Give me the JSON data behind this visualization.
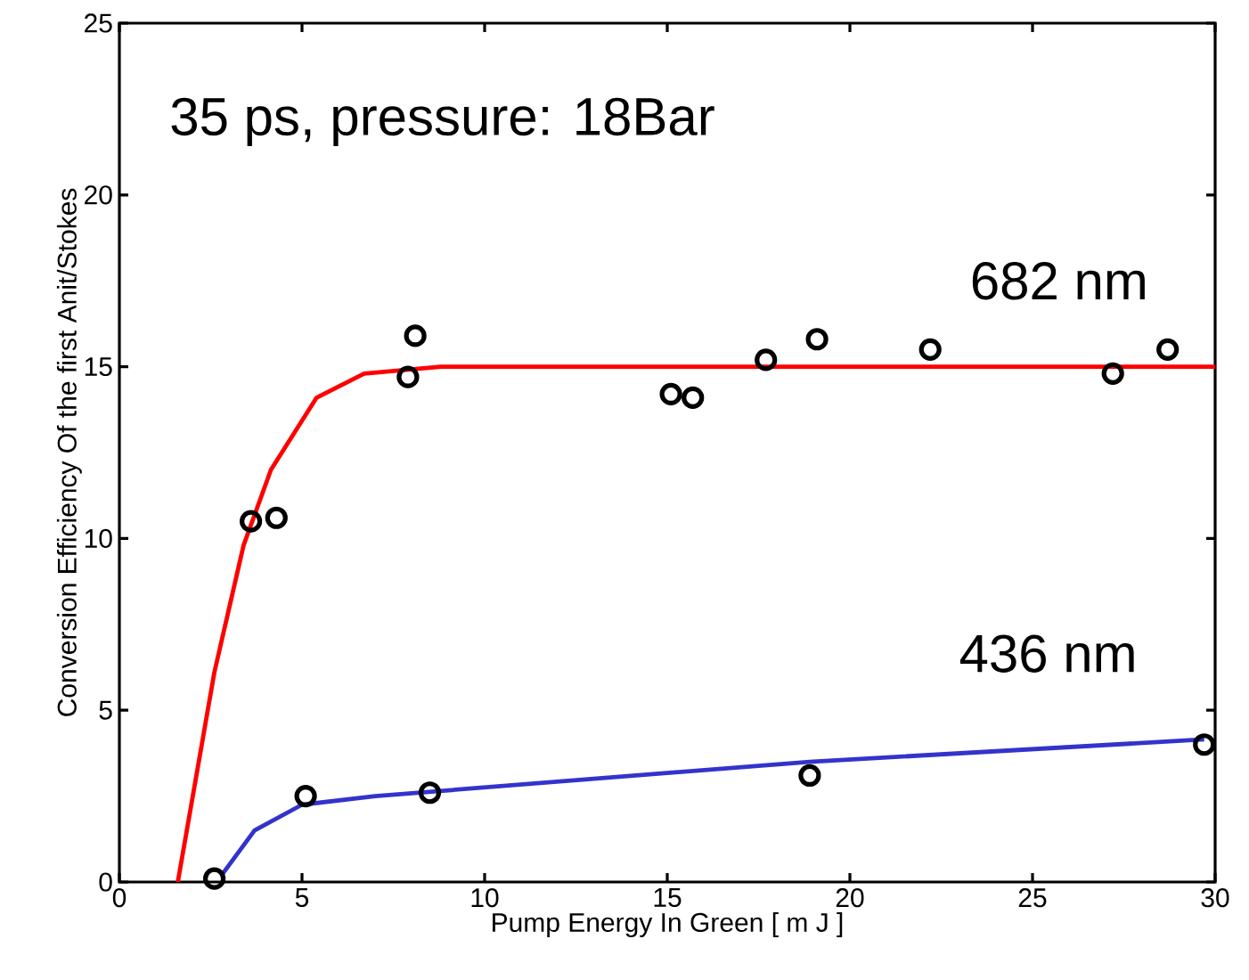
{
  "chart_data": {
    "type": "line",
    "xlabel": "Pump Energy In Green [ m J ]",
    "ylabel": "Conversion Efficiency Of the first Anit/Stokes",
    "annotations": [
      "35 ps, pressure: 18Bar"
    ],
    "xlim": [
      0,
      30
    ],
    "ylim": [
      0,
      25
    ],
    "xticks": [
      0,
      5,
      10,
      15,
      20,
      25,
      30
    ],
    "yticks": [
      0,
      5,
      10,
      15,
      20,
      25
    ],
    "grid": false,
    "legend": false,
    "series": [
      {
        "type": "scatter",
        "marker": "circle",
        "color": "#000000",
        "x": [
          2.6,
          3.6,
          4.3,
          7.9,
          8.1,
          15.1,
          15.7,
          17.7,
          19.1,
          22.2,
          27.2,
          28.7
        ],
        "values": [
          0.1,
          10.5,
          10.6,
          14.7,
          15.9,
          14.2,
          14.1,
          15.2,
          15.8,
          15.5,
          14.8,
          15.5
        ]
      },
      {
        "type": "scatter",
        "marker": "circle",
        "color": "#000000",
        "x": [
          5.1,
          8.5,
          18.9,
          29.7
        ],
        "values": [
          2.5,
          2.6,
          3.1,
          4.0
        ]
      },
      {
        "name": "682 nm",
        "color": "#ff0000",
        "x": [
          1.6,
          2.6,
          3.4,
          4.15,
          5.4,
          6.7,
          8.8,
          15,
          20,
          25,
          30
        ],
        "values": [
          0,
          6.1,
          9.8,
          12.0,
          14.1,
          14.8,
          15.0,
          15.0,
          15.0,
          15.0,
          15.0
        ]
      },
      {
        "name": "436 nm",
        "color": "#3333cc",
        "x": [
          2.8,
          3.7,
          5.0,
          7.0,
          15.3,
          18.9,
          29.7
        ],
        "values": [
          0.2,
          1.5,
          2.25,
          2.5,
          3.2,
          3.5,
          4.15
        ]
      }
    ]
  }
}
